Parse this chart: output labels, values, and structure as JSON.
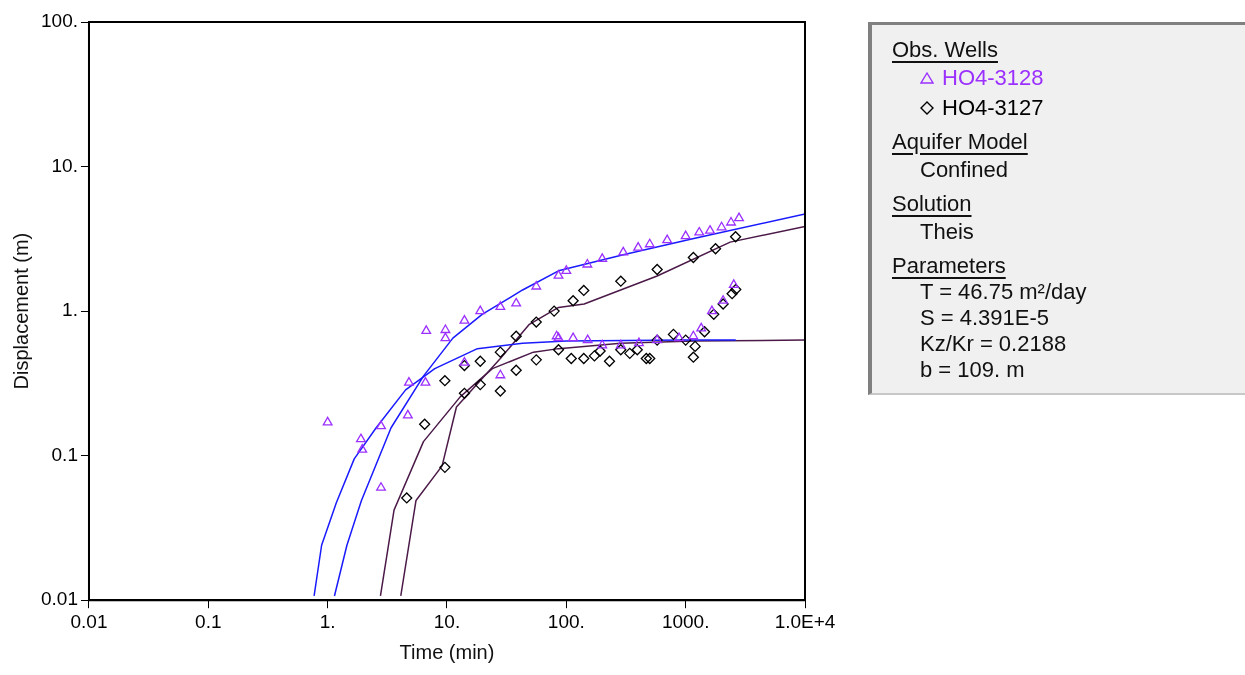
{
  "chart_data": {
    "type": "scatter",
    "xlabel": "Time (min)",
    "ylabel": "Displacement (m)",
    "log": "xy",
    "grid": false,
    "legend": "right",
    "legend_title": "Obs. Wells",
    "xlim": [
      0.01,
      10000
    ],
    "ylim": [
      0.01,
      100
    ],
    "xticks": [
      0.01,
      0.1,
      {
        "value": 1,
        "label": "1."
      },
      {
        "value": 10,
        "label": "10."
      },
      {
        "value": 100,
        "label": "100."
      },
      {
        "value": 1000,
        "label": "1000."
      },
      {
        "value": 10000,
        "label": "1.0E+4"
      }
    ],
    "yticks": [
      0.01,
      0.1,
      {
        "value": 1,
        "label": "1."
      },
      {
        "value": 10,
        "label": "10."
      },
      {
        "value": 100,
        "label": "100."
      }
    ],
    "annotations": [
      "Aquifer Model",
      "Confined",
      "Solution",
      "Theis",
      "Parameters",
      "T = 46.75 m²/day",
      "S = 4.391E-5",
      "Kz/Kr = 0.2188",
      "b = 109. m"
    ],
    "series": [
      {
        "name": "HO4-3128",
        "type": "scatter",
        "marker": "triangle",
        "color": "#9b30ff",
        "x": [
          1.0,
          1.9,
          1.95,
          2.8,
          2.8,
          4.7,
          4.8,
          6.6,
          6.7,
          9.7,
          9.7,
          14,
          14,
          19,
          28,
          28,
          38,
          56,
          86,
          86,
          100,
          150,
          200,
          300,
          400,
          500,
          700,
          1000,
          1300,
          1600,
          2000,
          2400,
          2800,
          83,
          114,
          151,
          200,
          286,
          406,
          577,
          880,
          1160,
          1350,
          1660,
          2060,
          2530
        ],
        "values": [
          0.17,
          0.13,
          0.11,
          0.16,
          0.06,
          0.19,
          0.32,
          0.32,
          0.73,
          0.74,
          0.65,
          0.44,
          0.86,
          1.0,
          0.36,
          1.07,
          1.13,
          1.48,
          1.76,
          0.65,
          1.9,
          2.1,
          2.3,
          2.55,
          2.75,
          2.9,
          3.1,
          3.3,
          3.5,
          3.6,
          3.8,
          4.1,
          4.4,
          0.67,
          0.65,
          0.63,
          0.58,
          0.58,
          0.6,
          0.63,
          0.65,
          0.67,
          0.76,
          1.0,
          1.18,
          1.52
        ]
      },
      {
        "name": "HO4-3127",
        "type": "scatter",
        "marker": "diamond",
        "color": "#000000",
        "x": [
          4.6,
          6.5,
          9.6,
          9.6,
          14,
          14,
          19,
          19,
          28,
          28,
          38,
          38,
          56,
          56,
          79,
          114,
          140,
          286,
          577,
          1160,
          1780,
          2620,
          86,
          110,
          140,
          172,
          192,
          230,
          286,
          340,
          393,
          468,
          500,
          577,
          790,
          1000,
          1160,
          1200,
          1440,
          1720,
          2060,
          2450,
          2630
        ],
        "values": [
          0.051,
          0.165,
          0.33,
          0.083,
          0.27,
          0.42,
          0.31,
          0.45,
          0.28,
          0.52,
          0.39,
          0.67,
          0.46,
          0.84,
          1.0,
          1.18,
          1.39,
          1.61,
          1.94,
          2.35,
          2.7,
          3.27,
          0.54,
          0.47,
          0.47,
          0.49,
          0.53,
          0.45,
          0.54,
          0.51,
          0.54,
          0.47,
          0.47,
          0.63,
          0.69,
          0.63,
          0.48,
          0.57,
          0.72,
          0.95,
          1.12,
          1.32,
          1.41
        ]
      },
      {
        "type": "line",
        "marker": "none",
        "color": "#1a1aff",
        "x": [
          0.77,
          0.89,
          1.18,
          1.67,
          2.55,
          4.5,
          7.9,
          18,
          43,
          100,
          1000,
          2630
        ],
        "values": [
          0.0107,
          0.024,
          0.047,
          0.095,
          0.156,
          0.285,
          0.4,
          0.55,
          0.6,
          0.62,
          0.63,
          0.63
        ]
      },
      {
        "type": "line",
        "marker": "none",
        "color": "#1a1aff",
        "x": [
          1.14,
          1.45,
          1.92,
          3.4,
          6.35,
          11.2,
          19.7,
          43,
          86,
          300,
          1170,
          10000
        ],
        "values": [
          0.0107,
          0.024,
          0.049,
          0.156,
          0.355,
          0.65,
          0.95,
          1.4,
          1.9,
          2.45,
          3.18,
          4.7
        ]
      },
      {
        "type": "line",
        "marker": "none",
        "color": "#4b1a48",
        "x": [
          2.77,
          3.6,
          6.35,
          12.9,
          24,
          53,
          86,
          286,
          1170,
          10000
        ],
        "values": [
          0.0107,
          0.042,
          0.125,
          0.255,
          0.4,
          0.52,
          0.55,
          0.6,
          0.62,
          0.63
        ]
      },
      {
        "type": "line",
        "marker": "none",
        "color": "#4b1a48",
        "x": [
          4.1,
          5.5,
          9.1,
          12,
          18.3,
          28,
          49,
          86,
          141,
          577,
          2360,
          10000
        ],
        "values": [
          0.0107,
          0.049,
          0.085,
          0.217,
          0.32,
          0.47,
          0.81,
          1.06,
          1.12,
          1.75,
          3.0,
          3.85
        ]
      }
    ]
  }
}
